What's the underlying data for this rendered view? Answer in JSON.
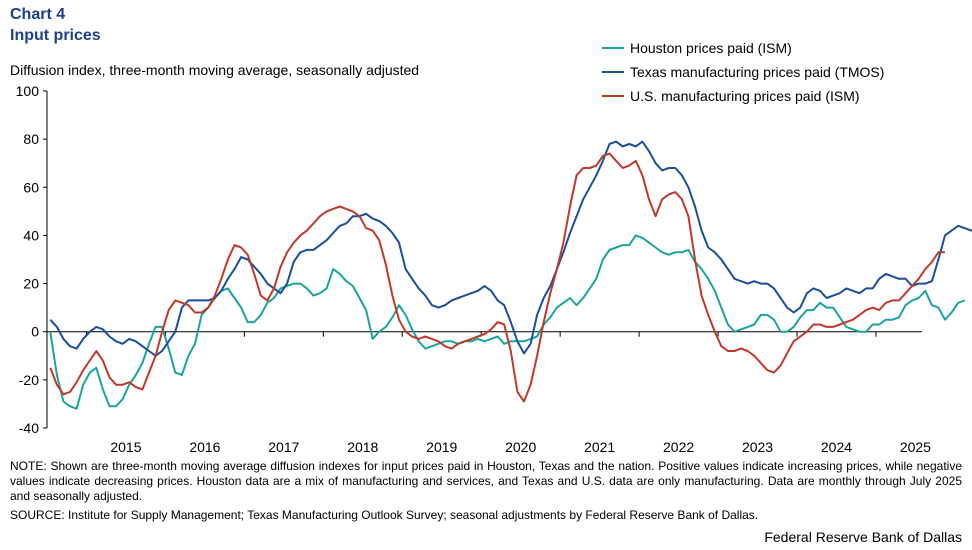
{
  "header": {
    "chart_number": "Chart 4",
    "title": "Input prices"
  },
  "footer": {
    "note": "NOTE: Shown are three-month moving average diffusion indexes for input prices paid in Houston, Texas and the nation. Positive values indicate increasing prices, while negative values indicate decreasing prices. Houston data are a mix of manufacturing and services, and Texas and U.S. data are only manufacturing. Data are monthly through July 2025 and seasonally adjusted.",
    "source": "SOURCE: Institute for Supply Management; Texas Manufacturing Outlook Survey; seasonal adjustments by Federal Reserve Bank of Dallas.",
    "credit": "Federal Reserve Bank of Dallas"
  },
  "chart_data": {
    "type": "line",
    "title": "Input prices",
    "ylabel": "Diffusion index, three-month moving average, seasonally adjusted",
    "xlabel": "",
    "ylim": [
      -40,
      100
    ],
    "yticks": [
      -40,
      -20,
      0,
      20,
      40,
      60,
      80,
      100
    ],
    "year_labels": [
      "2015",
      "2016",
      "2017",
      "2018",
      "2019",
      "2020",
      "2021",
      "2022",
      "2023",
      "2024",
      "2025"
    ],
    "legend_position": "top-right",
    "grid": false,
    "x_start": "2014-07",
    "x_end": "2025-07",
    "frequency": "monthly",
    "series": [
      {
        "name": "Houston prices paid (ISM)",
        "color": "#1aa59a",
        "start": "2014-07",
        "values": [
          0,
          -18,
          -29,
          -31,
          -32,
          -22,
          -17,
          -15,
          -24,
          -31,
          -31,
          -28,
          -22,
          -18,
          -13,
          -5,
          2,
          2,
          -7,
          -17,
          -18,
          -10,
          -5,
          7,
          10,
          14,
          17,
          18,
          14,
          10,
          4,
          4,
          7,
          12,
          14,
          18,
          19,
          20,
          20,
          18,
          15,
          16,
          18,
          26,
          24,
          21,
          19,
          14,
          9,
          -3,
          0,
          2,
          6,
          11,
          7,
          1,
          -4,
          -7,
          -6,
          -5,
          -4,
          -4,
          -5,
          -4,
          -4,
          -3,
          -4,
          -3,
          -2,
          -5,
          -4,
          -4,
          -4,
          -3,
          -2,
          3,
          6,
          10,
          12,
          14,
          11,
          14,
          18,
          22,
          30,
          34,
          35,
          36,
          36,
          40,
          39,
          37,
          35,
          33,
          32,
          33,
          33,
          34,
          29,
          26,
          22,
          17,
          10,
          3,
          0,
          1,
          2,
          3,
          7,
          7,
          5,
          0,
          0,
          2,
          6,
          9,
          9,
          12,
          10,
          10,
          6,
          2,
          1,
          0,
          0,
          3,
          3,
          5,
          5,
          6,
          11,
          13,
          14,
          17,
          11,
          10,
          5,
          8,
          12,
          13
        ],
        "last_label": ""
      },
      {
        "name": "Texas manufacturing prices paid (TMOS)",
        "color": "#1b4f9a",
        "start": "2014-07",
        "values": [
          5,
          2,
          -3,
          -6,
          -7,
          -3,
          0,
          2,
          1,
          -2,
          -4,
          -5,
          -3,
          -4,
          -6,
          -8,
          -10,
          -8,
          -4,
          0,
          10,
          13,
          13,
          13,
          13,
          14,
          17,
          22,
          26,
          31,
          30,
          27,
          24,
          20,
          18,
          16,
          20,
          29,
          33,
          34,
          34,
          36,
          38,
          41,
          44,
          45,
          48,
          48,
          49,
          47,
          46,
          44,
          41,
          37,
          26,
          22,
          18,
          15,
          11,
          10,
          11,
          13,
          14,
          15,
          16,
          17,
          19,
          17,
          13,
          11,
          4,
          -4,
          -9,
          -5,
          7,
          14,
          19,
          26,
          33,
          41,
          48,
          55,
          60,
          65,
          71,
          78,
          79,
          77,
          78,
          77,
          79,
          75,
          70,
          67,
          68,
          68,
          65,
          60,
          52,
          42,
          35,
          33,
          30,
          26,
          22,
          21,
          20,
          21,
          20,
          20,
          18,
          14,
          10,
          8,
          10,
          16,
          18,
          17,
          14,
          15,
          16,
          18,
          17,
          16,
          18,
          18,
          22,
          24,
          23,
          22,
          22,
          19,
          20,
          20,
          21,
          30,
          40,
          42,
          44,
          43,
          42,
          43
        ],
        "last_label": ""
      },
      {
        "name": "U.S. manufacturing prices paid (ISM)",
        "color": "#c0392b",
        "start": "2014-07",
        "values": [
          -15,
          -22,
          -26,
          -25,
          -21,
          -16,
          -12,
          -8,
          -12,
          -19,
          -22,
          -22,
          -21,
          -23,
          -24,
          -17,
          -10,
          0,
          9,
          13,
          12,
          11,
          8,
          8,
          10,
          15,
          22,
          30,
          36,
          35,
          32,
          24,
          15,
          13,
          18,
          27,
          33,
          37,
          40,
          42,
          45,
          48,
          50,
          51,
          52,
          51,
          50,
          48,
          43,
          42,
          38,
          28,
          15,
          5,
          0,
          -2,
          -3,
          -2,
          -3,
          -4,
          -6,
          -7,
          -5,
          -4,
          -3,
          -2,
          -1,
          1,
          4,
          3,
          -8,
          -25,
          -29,
          -22,
          -10,
          4,
          16,
          26,
          37,
          52,
          65,
          68,
          68,
          69,
          73,
          74,
          71,
          68,
          69,
          71,
          65,
          55,
          48,
          55,
          57,
          58,
          55,
          48,
          30,
          15,
          7,
          0,
          -6,
          -8,
          -8,
          -7,
          -8,
          -10,
          -13,
          -16,
          -17,
          -14,
          -9,
          -4,
          -2,
          0,
          3,
          3,
          2,
          2,
          3,
          4,
          5,
          7,
          9,
          10,
          9,
          12,
          13,
          13,
          16,
          19,
          22,
          26,
          29,
          33,
          33
        ]
      }
    ]
  }
}
